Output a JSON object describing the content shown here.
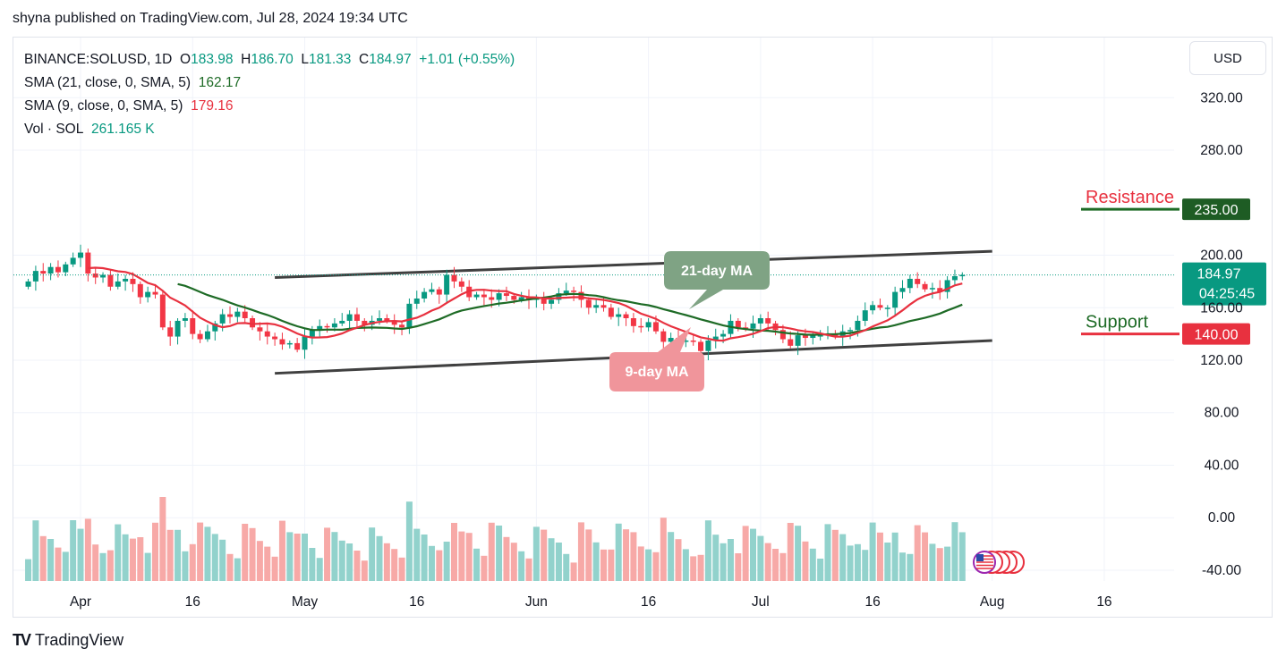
{
  "header": {
    "published": "shyna published on TradingView.com, Jul 28, 2024 19:34 UTC"
  },
  "legend": {
    "symbol": "BINANCE:SOLUSD, 1D",
    "o_label": "O",
    "o": "183.98",
    "h_label": "H",
    "h": "186.70",
    "l_label": "L",
    "l": "181.33",
    "c_label": "C",
    "c": "184.97",
    "change": "+1.01 (+0.55%)",
    "sma21_label": "SMA (21, close, 0, SMA, 5)",
    "sma21_value": "162.17",
    "sma9_label": "SMA (9, close, 0, SMA, 5)",
    "sma9_value": "179.16",
    "vol_label": "Vol · SOL",
    "vol_value": "261.165 K"
  },
  "currency_button": "USD",
  "footer": {
    "logo": "TV",
    "brand": "TradingView"
  },
  "annotations": {
    "resistance_label": "Resistance",
    "resistance_value": "235.00",
    "support_label": "Support",
    "support_value": "140.00",
    "ma21_label": "21-day MA",
    "ma9_label": "9-day MA",
    "last_price": "184.97",
    "countdown": "04:25:45"
  },
  "colors": {
    "up": "#089981",
    "down": "#f23645",
    "sma21": "#1e6b26",
    "sma9": "#e8313f",
    "resistance": "#1e6b26",
    "support": "#e8313f",
    "trendline": "#404040",
    "ma21_bubble": "#7fa384",
    "ma9_bubble": "#f0959b"
  },
  "chart_data": {
    "type": "candlestick",
    "axis": {
      "y_ticks": [
        320,
        280,
        200,
        160,
        120,
        80,
        40,
        0,
        -40
      ],
      "y_tick_labels": [
        "320.00",
        "280.00",
        "200.00",
        "160.00",
        "120.00",
        "80.00",
        "40.00",
        "0.00",
        "-40.00"
      ],
      "ylim": [
        -48,
        352
      ],
      "x_ticks": [
        "Apr",
        "16",
        "May",
        "16",
        "Jun",
        "16",
        "Jul",
        "16",
        "Aug",
        "16"
      ],
      "x_tick_dates": [
        "2024-04-01",
        "2024-04-16",
        "2024-05-01",
        "2024-05-16",
        "2024-06-01",
        "2024-06-16",
        "2024-07-01",
        "2024-07-16",
        "2024-08-01",
        "2024-08-16"
      ]
    },
    "resistance": 235,
    "support": 140,
    "trendline_upper": [
      [
        "2024-04-27",
        183
      ],
      [
        "2024-08-01",
        203
      ]
    ],
    "trendline_lower": [
      [
        "2024-04-27",
        110
      ],
      [
        "2024-08-01",
        135
      ]
    ],
    "candles_close": [
      [
        "2024-03-25",
        180
      ],
      [
        "2024-03-26",
        188
      ],
      [
        "2024-03-27",
        186
      ],
      [
        "2024-03-28",
        191
      ],
      [
        "2024-03-29",
        187
      ],
      [
        "2024-03-30",
        193
      ],
      [
        "2024-03-31",
        198
      ],
      [
        "2024-04-01",
        202
      ],
      [
        "2024-04-02",
        186
      ],
      [
        "2024-04-03",
        183
      ],
      [
        "2024-04-04",
        185
      ],
      [
        "2024-04-05",
        176
      ],
      [
        "2024-04-06",
        180
      ],
      [
        "2024-04-07",
        182
      ],
      [
        "2024-04-08",
        178
      ],
      [
        "2024-04-09",
        168
      ],
      [
        "2024-04-10",
        172
      ],
      [
        "2024-04-11",
        170
      ],
      [
        "2024-04-12",
        145
      ],
      [
        "2024-04-13",
        138
      ],
      [
        "2024-04-14",
        150
      ],
      [
        "2024-04-15",
        152
      ],
      [
        "2024-04-16",
        140
      ],
      [
        "2024-04-17",
        136
      ],
      [
        "2024-04-18",
        142
      ],
      [
        "2024-04-19",
        148
      ],
      [
        "2024-04-20",
        155
      ],
      [
        "2024-04-21",
        153
      ],
      [
        "2024-04-22",
        157
      ],
      [
        "2024-04-23",
        152
      ],
      [
        "2024-04-24",
        145
      ],
      [
        "2024-04-25",
        142
      ],
      [
        "2024-04-26",
        138
      ],
      [
        "2024-04-27",
        136
      ],
      [
        "2024-04-28",
        132
      ],
      [
        "2024-04-29",
        133
      ],
      [
        "2024-04-30",
        128
      ],
      [
        "2024-05-01",
        138
      ],
      [
        "2024-05-02",
        143
      ],
      [
        "2024-05-03",
        146
      ],
      [
        "2024-05-04",
        145
      ],
      [
        "2024-05-05",
        148
      ],
      [
        "2024-05-06",
        150
      ],
      [
        "2024-05-07",
        155
      ],
      [
        "2024-05-08",
        150
      ],
      [
        "2024-05-09",
        147
      ],
      [
        "2024-05-10",
        150
      ],
      [
        "2024-05-11",
        152
      ],
      [
        "2024-05-12",
        150
      ],
      [
        "2024-05-13",
        147
      ],
      [
        "2024-05-14",
        145
      ],
      [
        "2024-05-15",
        163
      ],
      [
        "2024-05-16",
        167
      ],
      [
        "2024-05-17",
        172
      ],
      [
        "2024-05-18",
        174
      ],
      [
        "2024-05-19",
        170
      ],
      [
        "2024-05-20",
        185
      ],
      [
        "2024-05-21",
        180
      ],
      [
        "2024-05-22",
        176
      ],
      [
        "2024-05-23",
        168
      ],
      [
        "2024-05-24",
        170
      ],
      [
        "2024-05-25",
        168
      ],
      [
        "2024-05-26",
        166
      ],
      [
        "2024-05-27",
        171
      ],
      [
        "2024-05-28",
        169
      ],
      [
        "2024-05-29",
        166
      ],
      [
        "2024-05-30",
        168
      ],
      [
        "2024-05-31",
        166
      ],
      [
        "2024-06-01",
        167
      ],
      [
        "2024-06-02",
        163
      ],
      [
        "2024-06-03",
        166
      ],
      [
        "2024-06-04",
        171
      ],
      [
        "2024-06-05",
        173
      ],
      [
        "2024-06-06",
        172
      ],
      [
        "2024-06-07",
        166
      ],
      [
        "2024-06-08",
        160
      ],
      [
        "2024-06-09",
        162
      ],
      [
        "2024-06-10",
        160
      ],
      [
        "2024-06-11",
        153
      ],
      [
        "2024-06-12",
        155
      ],
      [
        "2024-06-13",
        152
      ],
      [
        "2024-06-14",
        146
      ],
      [
        "2024-06-15",
        145
      ],
      [
        "2024-06-16",
        149
      ],
      [
        "2024-06-17",
        142
      ],
      [
        "2024-06-18",
        134
      ],
      [
        "2024-06-19",
        137
      ],
      [
        "2024-06-20",
        134
      ],
      [
        "2024-06-21",
        135
      ],
      [
        "2024-06-22",
        134
      ],
      [
        "2024-06-23",
        127
      ],
      [
        "2024-06-24",
        135
      ],
      [
        "2024-06-25",
        138
      ],
      [
        "2024-06-26",
        140
      ],
      [
        "2024-06-27",
        150
      ],
      [
        "2024-06-28",
        145
      ],
      [
        "2024-06-29",
        144
      ],
      [
        "2024-06-30",
        148
      ],
      [
        "2024-07-01",
        152
      ],
      [
        "2024-07-02",
        148
      ],
      [
        "2024-07-03",
        143
      ],
      [
        "2024-07-04",
        136
      ],
      [
        "2024-07-05",
        131
      ],
      [
        "2024-07-06",
        139
      ],
      [
        "2024-07-07",
        137
      ],
      [
        "2024-07-08",
        139
      ],
      [
        "2024-07-09",
        139
      ],
      [
        "2024-07-10",
        140
      ],
      [
        "2024-07-11",
        138
      ],
      [
        "2024-07-12",
        142
      ],
      [
        "2024-07-13",
        143
      ],
      [
        "2024-07-14",
        150
      ],
      [
        "2024-07-15",
        158
      ],
      [
        "2024-07-16",
        162
      ],
      [
        "2024-07-17",
        160
      ],
      [
        "2024-07-18",
        160
      ],
      [
        "2024-07-19",
        172
      ],
      [
        "2024-07-20",
        175
      ],
      [
        "2024-07-21",
        182
      ],
      [
        "2024-07-22",
        178
      ],
      [
        "2024-07-23",
        174
      ],
      [
        "2024-07-24",
        175
      ],
      [
        "2024-07-25",
        172
      ],
      [
        "2024-07-26",
        181
      ],
      [
        "2024-07-27",
        184
      ],
      [
        "2024-07-28",
        184.97
      ]
    ]
  }
}
